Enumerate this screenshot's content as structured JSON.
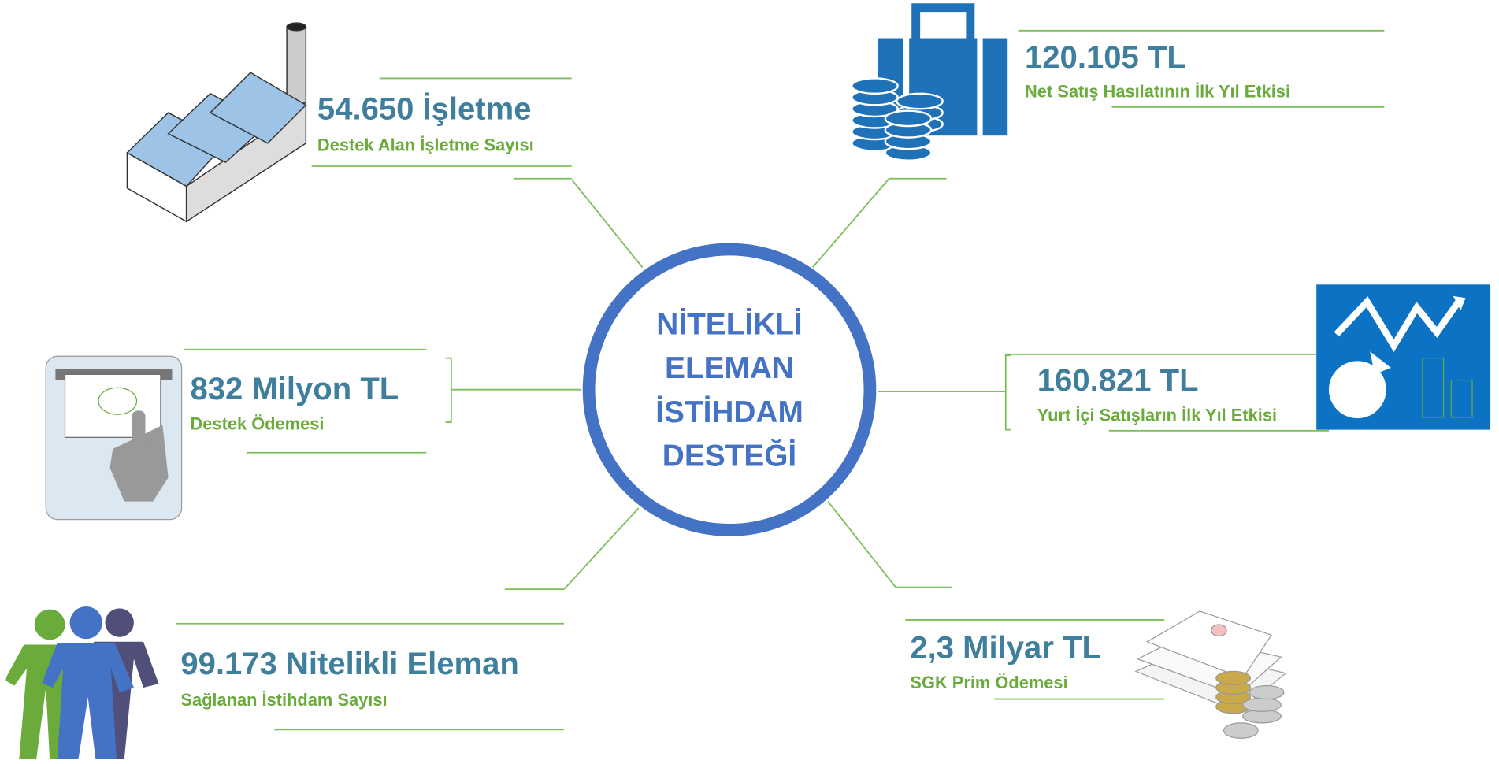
{
  "center": {
    "lines": [
      "NİTELİKLİ",
      "ELEMAN",
      "İSTİHDAM",
      "DESTEĞİ"
    ]
  },
  "nodes": [
    {
      "value": "54.650 İşletme",
      "label": "Destek Alan İşletme Sayısı"
    },
    {
      "value": "120.105 TL",
      "label": "Net Satış Hasılatının İlk Yıl Etkisi"
    },
    {
      "value": "832 Milyon TL",
      "label": "Destek Ödemesi"
    },
    {
      "value": "160.821 TL",
      "label": "Yurt İçi Satışların İlk Yıl Etkisi"
    },
    {
      "value": "99.173 Nitelikli Eleman",
      "label": "Sağlanan İstihdam Sayısı"
    },
    {
      "value": "2,3 Milyar TL",
      "label": "SGK Prim Ödemesi"
    }
  ]
}
